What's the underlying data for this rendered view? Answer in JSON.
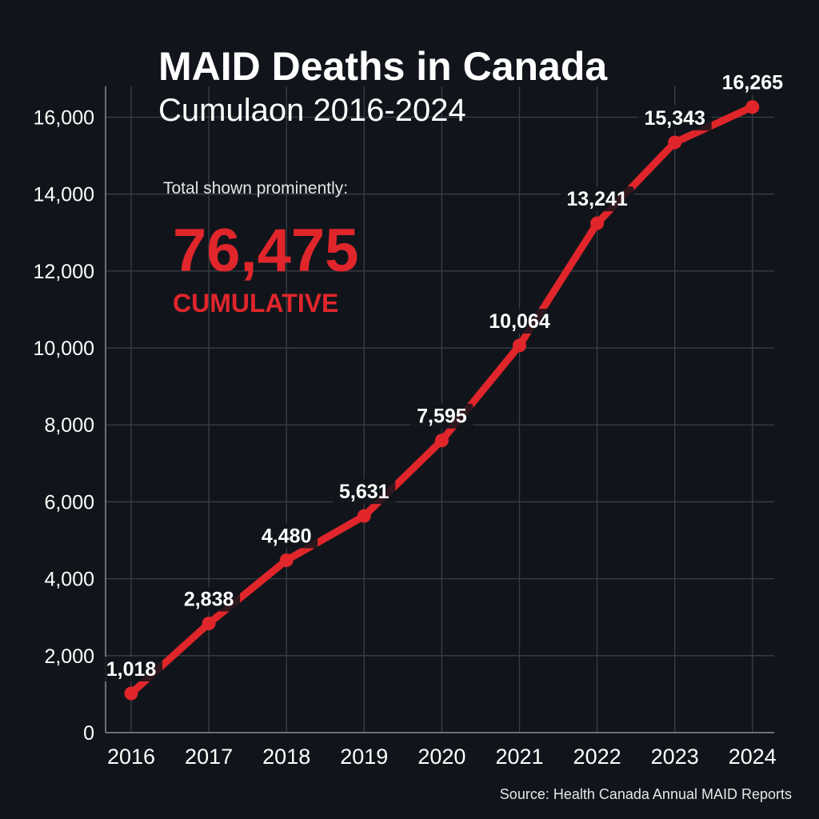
{
  "chart_data": {
    "type": "line",
    "title": "MAID Deaths in Canada",
    "subtitle": "Cumulaon 2016-2024",
    "x": [
      "2016",
      "2017",
      "2018",
      "2019",
      "2020",
      "2021",
      "2022",
      "2023",
      "2024"
    ],
    "series": [
      {
        "values": [
          1018,
          2838,
          4480,
          5631,
          7595,
          10064,
          13241,
          15343,
          16265
        ]
      }
    ],
    "data_labels": [
      "1,018",
      "2,838",
      "4,480",
      "5,631",
      "7,595",
      "10,064",
      "13,241",
      "15,343",
      "16,265"
    ],
    "y_ticks": [
      {
        "value": 0,
        "label": "0"
      },
      {
        "value": 2000,
        "label": "2,000"
      },
      {
        "value": 4000,
        "label": "4,000"
      },
      {
        "value": 6000,
        "label": "6,000"
      },
      {
        "value": 8000,
        "label": "8,000"
      },
      {
        "value": 10000,
        "label": "10,000"
      },
      {
        "value": 12000,
        "label": "12,000"
      },
      {
        "value": 14000,
        "label": "14,000"
      },
      {
        "value": 16000,
        "label": "16,000"
      }
    ],
    "ylim": [
      0,
      16800
    ],
    "grid": true,
    "legend": "none",
    "annotation": {
      "caption": "Total shown prominently:",
      "value": "76,475",
      "label": "CUMULATIVE"
    },
    "source": "Source: Health Canada Annual MAID Reports",
    "colors": {
      "background": "#11151b",
      "line": "#e0262b",
      "grid": "#3a3f47",
      "text": "#ffffff",
      "accent": "#e0262b"
    }
  }
}
